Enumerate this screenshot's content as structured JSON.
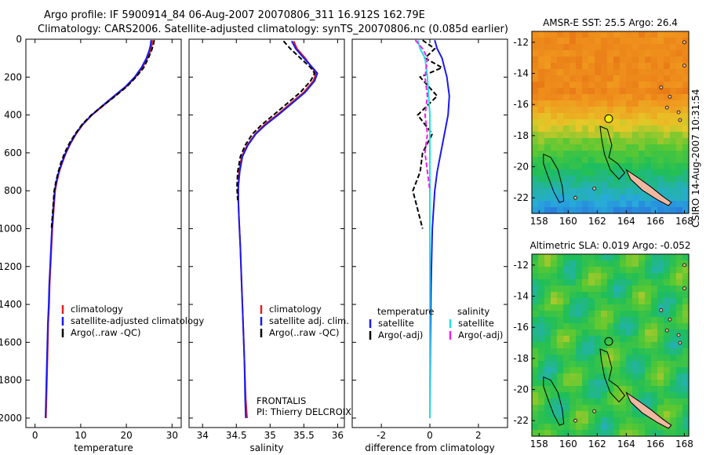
{
  "title_line1": "Argo profile: IF 5900914_84 06-Aug-2007 20070806_311 16.912S 162.79E",
  "title_line2": "Climatology: CARS2006. Satellite-adjusted climatology: synTS_20070806.nc (0.085d earlier)",
  "stamp": "CSIRO 14-Aug-2007 10:31:54",
  "colors": {
    "climatology": "#e02020",
    "satellite": "#1a1aee",
    "argo": "#000000",
    "sal_satellite": "#20e0e0",
    "sal_argo": "#ee20ee"
  },
  "chart_data": [
    {
      "id": "temperature",
      "type": "line",
      "xlabel": "temperature",
      "xlim": [
        -2,
        32
      ],
      "ylim": [
        2050,
        0
      ],
      "xticks": [
        0,
        10,
        20,
        30
      ],
      "yticks": [
        0,
        200,
        400,
        600,
        800,
        1000,
        1200,
        1400,
        1600,
        1800,
        2000
      ],
      "legend": [
        "climatology",
        "satellite-adjusted climatology",
        "Argo(..raw -QC)"
      ],
      "series": [
        {
          "name": "climatology",
          "color": "#e02020",
          "dash": false,
          "points": [
            [
              25.7,
              5
            ],
            [
              25.6,
              30
            ],
            [
              25.3,
              60
            ],
            [
              24.6,
              100
            ],
            [
              23.5,
              150
            ],
            [
              22,
              200
            ],
            [
              20,
              250
            ],
            [
              17.5,
              300
            ],
            [
              15,
              350
            ],
            [
              12.5,
              400
            ],
            [
              10.5,
              450
            ],
            [
              9,
              500
            ],
            [
              7.8,
              550
            ],
            [
              6.8,
              600
            ],
            [
              6,
              650
            ],
            [
              5.3,
              700
            ],
            [
              4.8,
              750
            ],
            [
              4.4,
              800
            ],
            [
              4.1,
              900
            ],
            [
              3.8,
              1000
            ],
            [
              3.6,
              1100
            ],
            [
              3.4,
              1200
            ],
            [
              3.2,
              1300
            ],
            [
              3.1,
              1400
            ],
            [
              2.9,
              1500
            ],
            [
              2.8,
              1600
            ],
            [
              2.7,
              1700
            ],
            [
              2.6,
              1800
            ],
            [
              2.5,
              1900
            ],
            [
              2.4,
              2000
            ]
          ]
        },
        {
          "name": "satellite-adjusted climatology",
          "color": "#1a1aee",
          "dash": false,
          "points": [
            [
              25.4,
              5
            ],
            [
              25.3,
              30
            ],
            [
              25,
              60
            ],
            [
              24.4,
              100
            ],
            [
              23.3,
              150
            ],
            [
              21.8,
              200
            ],
            [
              19.8,
              250
            ],
            [
              17.3,
              300
            ],
            [
              14.8,
              350
            ],
            [
              12.4,
              400
            ],
            [
              10.4,
              450
            ],
            [
              8.9,
              500
            ],
            [
              7.7,
              550
            ],
            [
              6.7,
              600
            ],
            [
              5.9,
              650
            ],
            [
              5.2,
              700
            ],
            [
              4.7,
              750
            ],
            [
              4.3,
              800
            ],
            [
              4,
              900
            ],
            [
              3.7,
              1000
            ],
            [
              3.5,
              1100
            ],
            [
              3.3,
              1200
            ],
            [
              3.1,
              1300
            ],
            [
              3,
              1400
            ],
            [
              2.8,
              1500
            ],
            [
              2.7,
              1600
            ],
            [
              2.6,
              1700
            ],
            [
              2.5,
              1800
            ],
            [
              2.4,
              1900
            ],
            [
              2.3,
              2000
            ]
          ]
        },
        {
          "name": "Argo(..raw -QC)",
          "color": "#000000",
          "dash": true,
          "points": [
            [
              26.1,
              5
            ],
            [
              25.9,
              30
            ],
            [
              25.5,
              60
            ],
            [
              24.8,
              100
            ],
            [
              23.8,
              150
            ],
            [
              22.1,
              200
            ],
            [
              20.1,
              250
            ],
            [
              17.6,
              300
            ],
            [
              14.9,
              350
            ],
            [
              12.3,
              400
            ],
            [
              10.3,
              450
            ],
            [
              8.8,
              500
            ],
            [
              7.5,
              550
            ],
            [
              6.5,
              600
            ],
            [
              5.7,
              650
            ],
            [
              5.1,
              700
            ],
            [
              4.6,
              750
            ],
            [
              4.2,
              800
            ],
            [
              3.9,
              900
            ],
            [
              3.6,
              1000
            ]
          ]
        }
      ]
    },
    {
      "id": "salinity",
      "type": "line",
      "xlabel": "salinity",
      "xlim": [
        33.8,
        36.1
      ],
      "ylim": [
        2050,
        0
      ],
      "xticks": [
        34,
        34.5,
        35,
        35.5,
        36
      ],
      "legend": [
        "climatology",
        "satellite adj. clim.",
        "Argo(..raw -QC)"
      ],
      "annotation": [
        "FRONTALIS",
        "PI: Thierry DELCROIX"
      ],
      "series": [
        {
          "name": "climatology",
          "color": "#e02020",
          "dash": false,
          "points": [
            [
              35.35,
              10
            ],
            [
              35.4,
              50
            ],
            [
              35.52,
              100
            ],
            [
              35.62,
              150
            ],
            [
              35.68,
              180
            ],
            [
              35.64,
              220
            ],
            [
              35.5,
              280
            ],
            [
              35.3,
              340
            ],
            [
              35.1,
              400
            ],
            [
              34.92,
              450
            ],
            [
              34.78,
              500
            ],
            [
              34.66,
              560
            ],
            [
              34.58,
              620
            ],
            [
              34.54,
              700
            ],
            [
              34.53,
              780
            ],
            [
              34.53,
              850
            ],
            [
              34.54,
              950
            ],
            [
              34.56,
              1100
            ],
            [
              34.58,
              1300
            ],
            [
              34.6,
              1500
            ],
            [
              34.62,
              1700
            ],
            [
              34.64,
              1900
            ],
            [
              34.66,
              2000
            ]
          ]
        },
        {
          "name": "satellite adj. clim.",
          "color": "#1a1aee",
          "dash": false,
          "points": [
            [
              35.32,
              10
            ],
            [
              35.38,
              50
            ],
            [
              35.5,
              100
            ],
            [
              35.63,
              150
            ],
            [
              35.7,
              180
            ],
            [
              35.66,
              220
            ],
            [
              35.52,
              280
            ],
            [
              35.32,
              340
            ],
            [
              35.12,
              400
            ],
            [
              34.94,
              450
            ],
            [
              34.79,
              500
            ],
            [
              34.67,
              560
            ],
            [
              34.59,
              620
            ],
            [
              34.55,
              700
            ],
            [
              34.53,
              780
            ],
            [
              34.53,
              850
            ],
            [
              34.54,
              950
            ],
            [
              34.56,
              1100
            ],
            [
              34.58,
              1300
            ],
            [
              34.6,
              1500
            ],
            [
              34.62,
              1700
            ],
            [
              34.63,
              1900
            ],
            [
              34.64,
              2000
            ]
          ]
        },
        {
          "name": "Argo(..raw -QC)",
          "color": "#000000",
          "dash": true,
          "points": [
            [
              35.2,
              10
            ],
            [
              35.3,
              50
            ],
            [
              35.45,
              100
            ],
            [
              35.6,
              150
            ],
            [
              35.66,
              180
            ],
            [
              35.6,
              220
            ],
            [
              35.45,
              280
            ],
            [
              35.25,
              340
            ],
            [
              35.05,
              400
            ],
            [
              34.88,
              450
            ],
            [
              34.74,
              500
            ],
            [
              34.63,
              560
            ],
            [
              34.56,
              620
            ],
            [
              34.52,
              700
            ],
            [
              34.51,
              780
            ],
            [
              34.52,
              850
            ]
          ]
        }
      ]
    },
    {
      "id": "difference",
      "type": "line",
      "xlabel": "difference from climatology",
      "xlim": [
        -3.2,
        3.2
      ],
      "ylim": [
        2050,
        0
      ],
      "xticks": [
        -2,
        0,
        2
      ],
      "legend_headers": [
        "temperature",
        "salinity"
      ],
      "legend": [
        "satellite",
        "Argo(-adj)",
        "satellite",
        "Argo(-adj)"
      ],
      "series": [
        {
          "name": "temperature satellite",
          "color": "#1a1aee",
          "dash": false,
          "points": [
            [
              0.2,
              5
            ],
            [
              0.3,
              50
            ],
            [
              0.5,
              100
            ],
            [
              0.7,
              200
            ],
            [
              0.8,
              300
            ],
            [
              0.75,
              400
            ],
            [
              0.6,
              500
            ],
            [
              0.45,
              600
            ],
            [
              0.3,
              700
            ],
            [
              0.2,
              800
            ],
            [
              0.1,
              1000
            ],
            [
              0.05,
              1300
            ],
            [
              0.02,
              1600
            ],
            [
              0,
              2000
            ]
          ]
        },
        {
          "name": "temperature Argo(-adj)",
          "color": "#000000",
          "dash": true,
          "points": [
            [
              -0.3,
              5
            ],
            [
              0.2,
              50
            ],
            [
              -0.2,
              100
            ],
            [
              0.5,
              150
            ],
            [
              -0.4,
              200
            ],
            [
              0.3,
              300
            ],
            [
              -0.5,
              400
            ],
            [
              0.1,
              500
            ],
            [
              -0.3,
              600
            ],
            [
              -0.4,
              700
            ],
            [
              -0.7,
              800
            ],
            [
              -0.5,
              900
            ],
            [
              -0.3,
              1000
            ]
          ]
        },
        {
          "name": "salinity satellite",
          "color": "#20e0e0",
          "dash": false,
          "points": [
            [
              -0.5,
              5
            ],
            [
              -0.4,
              50
            ],
            [
              -0.2,
              100
            ],
            [
              -0.1,
              200
            ],
            [
              0,
              400
            ],
            [
              0,
              600
            ],
            [
              0,
              800
            ],
            [
              0,
              1200
            ],
            [
              0,
              1600
            ],
            [
              0,
              2000
            ]
          ]
        },
        {
          "name": "salinity Argo(-adj)",
          "color": "#ee20ee",
          "dash": true,
          "points": [
            [
              -0.6,
              5
            ],
            [
              -0.3,
              50
            ],
            [
              -0.1,
              100
            ],
            [
              -0.2,
              200
            ],
            [
              -0.1,
              300
            ],
            [
              -0.2,
              400
            ],
            [
              -0.1,
              500
            ],
            [
              -0.2,
              600
            ],
            [
              -0.1,
              700
            ],
            [
              0,
              800
            ]
          ]
        }
      ]
    },
    {
      "id": "sst-map",
      "type": "heatmap",
      "title": "AMSR-E SST: 25.5 Argo: 26.4",
      "xticks": [
        158,
        160,
        162,
        164,
        166,
        168
      ],
      "yticks": [
        -12,
        -14,
        -16,
        -18,
        -20,
        -22
      ],
      "xlim": [
        157.5,
        168.3
      ],
      "ylim": [
        -23,
        -11.3
      ],
      "profile_location": [
        162.79,
        -16.912
      ]
    },
    {
      "id": "sla-map",
      "type": "heatmap",
      "title": "Altimetric SLA: 0.019 Argo: -0.052",
      "xticks": [
        158,
        160,
        162,
        164,
        166,
        168
      ],
      "yticks": [
        -12,
        -14,
        -16,
        -18,
        -20,
        -22
      ],
      "xlim": [
        157.5,
        168.3
      ],
      "ylim": [
        -23,
        -11.3
      ],
      "profile_location": [
        162.79,
        -16.912
      ]
    }
  ]
}
